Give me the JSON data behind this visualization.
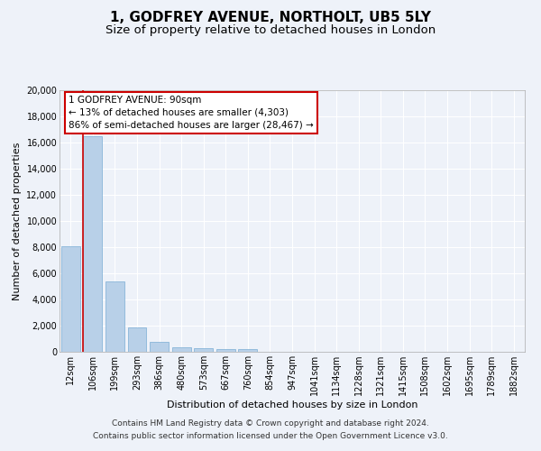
{
  "title": "1, GODFREY AVENUE, NORTHOLT, UB5 5LY",
  "subtitle": "Size of property relative to detached houses in London",
  "xlabel": "Distribution of detached houses by size in London",
  "ylabel": "Number of detached properties",
  "categories": [
    "12sqm",
    "106sqm",
    "199sqm",
    "293sqm",
    "386sqm",
    "480sqm",
    "573sqm",
    "667sqm",
    "760sqm",
    "854sqm",
    "947sqm",
    "1041sqm",
    "1134sqm",
    "1228sqm",
    "1321sqm",
    "1415sqm",
    "1508sqm",
    "1602sqm",
    "1695sqm",
    "1789sqm",
    "1882sqm"
  ],
  "values": [
    8100,
    16500,
    5350,
    1850,
    750,
    350,
    280,
    210,
    200,
    0,
    0,
    0,
    0,
    0,
    0,
    0,
    0,
    0,
    0,
    0,
    0
  ],
  "bar_color": "#b8d0e8",
  "bar_edge_color": "#7aadd4",
  "highlight_color": "#cc0000",
  "annotation_title": "1 GODFREY AVENUE: 90sqm",
  "annotation_line1": "← 13% of detached houses are smaller (4,303)",
  "annotation_line2": "86% of semi-detached houses are larger (28,467) →",
  "annotation_box_color": "#cc0000",
  "ylim": [
    0,
    20000
  ],
  "yticks": [
    0,
    2000,
    4000,
    6000,
    8000,
    10000,
    12000,
    14000,
    16000,
    18000,
    20000
  ],
  "footer_line1": "Contains HM Land Registry data © Crown copyright and database right 2024.",
  "footer_line2": "Contains public sector information licensed under the Open Government Licence v3.0.",
  "bg_color": "#eef2f9",
  "grid_color": "#ffffff",
  "title_fontsize": 11,
  "subtitle_fontsize": 9.5,
  "axis_label_fontsize": 8,
  "tick_fontsize": 7,
  "annotation_fontsize": 7.5,
  "footer_fontsize": 6.5
}
